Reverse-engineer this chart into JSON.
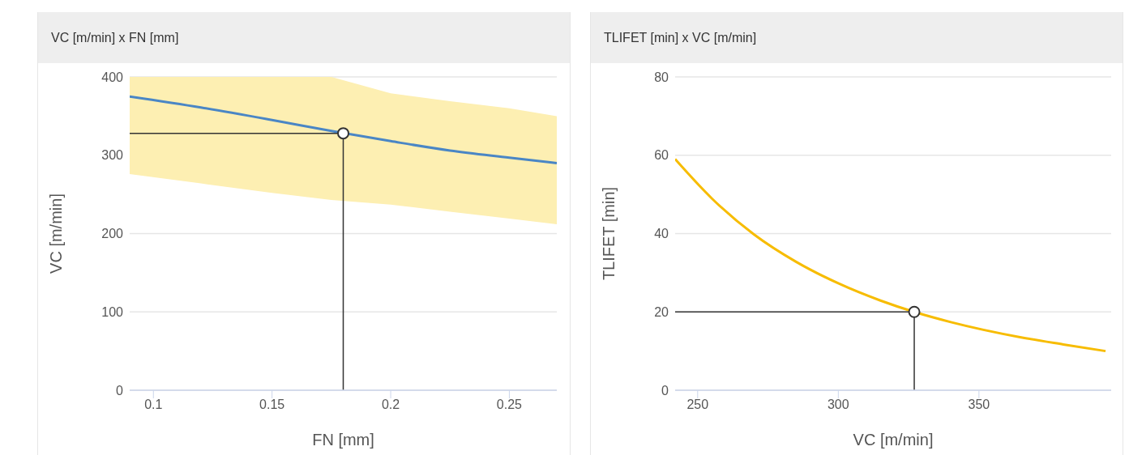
{
  "chart_data": [
    {
      "type": "line",
      "title": "VC [m/min] x FN [mm]",
      "xlabel": "FN [mm]",
      "ylabel": "VC [m/min]",
      "xlim": [
        0.09,
        0.27
      ],
      "xticks": [
        0.1,
        0.15,
        0.2,
        0.25
      ],
      "ylim": [
        0,
        400
      ],
      "yticks": [
        0,
        100,
        200,
        300,
        400
      ],
      "grid": "y",
      "legend": false,
      "series": [
        {
          "color": "#4a86c5",
          "marker": "none",
          "x": [
            0.09,
            0.12,
            0.15,
            0.175,
            0.2,
            0.225,
            0.25,
            0.27
          ],
          "values": [
            375,
            361,
            345,
            331,
            318,
            306,
            297,
            290
          ],
          "lower": [
            276,
            264,
            252,
            243,
            237,
            228,
            219,
            212
          ],
          "upper": [
            400,
            400,
            400,
            400,
            379,
            369,
            360,
            350
          ]
        },
        {
          "color": "#333333",
          "marker": "none",
          "x": [
            0.09,
            0.18,
            0.18
          ],
          "values": [
            328,
            328,
            0
          ]
        },
        {
          "type": "scatter",
          "color": "#ffffff",
          "marker": "circle",
          "x": [
            0.18
          ],
          "values": [
            328
          ]
        }
      ]
    },
    {
      "type": "line",
      "title": "TLIFET [min] x VC [m/min]",
      "xlabel": "VC [m/min]",
      "ylabel": "TLIFET [min]",
      "xlim": [
        242,
        397
      ],
      "xticks": [
        250,
        300,
        350
      ],
      "ylim": [
        0,
        80
      ],
      "yticks": [
        0,
        20,
        40,
        60,
        80
      ],
      "grid": "y",
      "legend": false,
      "series": [
        {
          "color": "#f7bc00",
          "marker": "none",
          "x": [
            242,
            255,
            270,
            285,
            300,
            315,
            327,
            340,
            365,
            380,
            395
          ],
          "values": [
            59,
            49,
            39.8,
            32.8,
            27.3,
            22.9,
            20,
            17.4,
            13.5,
            11.7,
            10
          ]
        },
        {
          "color": "#333333",
          "marker": "none",
          "x": [
            242,
            327,
            327
          ],
          "values": [
            20,
            20,
            0
          ]
        },
        {
          "type": "scatter",
          "color": "#ffffff",
          "marker": "circle",
          "x": [
            327
          ],
          "values": [
            20
          ]
        }
      ]
    }
  ]
}
